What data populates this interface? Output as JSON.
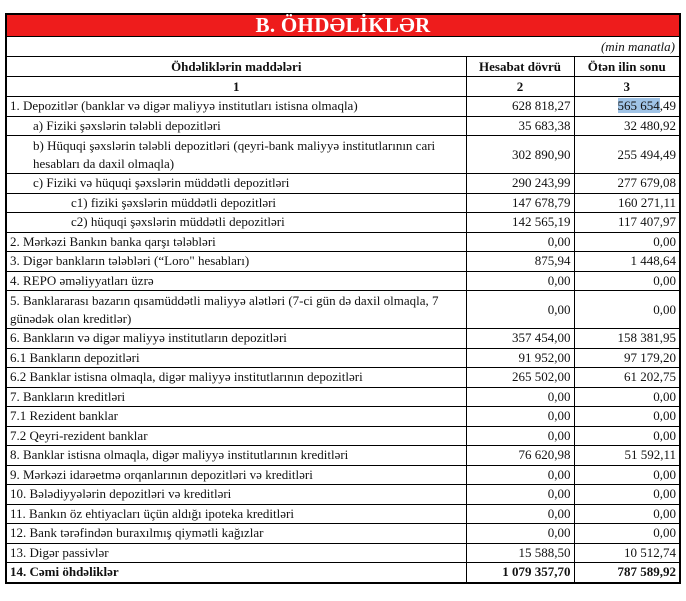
{
  "title": "B. ÖHDƏLİKLƏR",
  "unit": "(min manatla)",
  "columns": [
    "Öhdəliklərin maddələri",
    "Hesabat dövrü",
    "Ötən ilin sonu"
  ],
  "column_numbers": [
    "1",
    "2",
    "3"
  ],
  "selection_color": "#9fc3e6",
  "rows": [
    {
      "label": "1. Depozitlər (banklar və digər maliyyə institutları istisna olmaqla)",
      "current": "628 818,27",
      "previous": "565 654,49",
      "previous_selected": "565 654",
      "previous_rest": ",49",
      "style": ""
    },
    {
      "label": "a)  Fiziki şəxslərin tələbli depozitləri",
      "current": "35 683,38",
      "previous": "32 480,92",
      "style": "ind1"
    },
    {
      "label": "b) Hüquqi şəxslərin tələbli depozitləri (qeyri-bank maliyyə institutlarının cari hesabları da daxil olmaqla)",
      "current": "302 890,90",
      "previous": "255 494,49",
      "style": "ind1 double"
    },
    {
      "label": "c) Fiziki və hüquqi şəxslərin müddətli depozitləri",
      "current": "290 243,99",
      "previous": "277 679,08",
      "style": "ind1"
    },
    {
      "label": "c1) fiziki şəxslərin müddətli depozitləri",
      "current": "147 678,79",
      "previous": "160 271,11",
      "style": "ind2"
    },
    {
      "label": "c2) hüquqi şəxslərin müddətli depozitləri",
      "current": "142 565,19",
      "previous": "117 407,97",
      "style": "ind2"
    },
    {
      "label": "2. Mərkəzi Bankın banka qarşı tələbləri",
      "current": "0,00",
      "previous": "0,00",
      "style": ""
    },
    {
      "label": "3. Digər bankların tələbləri (“Loro\" hesabları)",
      "current": "875,94",
      "previous": "1 448,64",
      "style": ""
    },
    {
      "label": "4. REPO əməliyyatları  üzrə",
      "current": "0,00",
      "previous": "0,00",
      "style": ""
    },
    {
      "label": "5. Banklararası bazarın qısamüddətli maliyyə alətləri (7-ci gün də daxil olmaqla, 7 günədək olan kreditlər)",
      "current": "0,00",
      "previous": "0,00",
      "style": "double"
    },
    {
      "label": "6. Bankların və digər maliyyə institutların depozitləri",
      "current": "357 454,00",
      "previous": "158 381,95",
      "style": ""
    },
    {
      "label": "6.1  Bankların depozitləri",
      "current": "91 952,00",
      "previous": "97 179,20",
      "style": ""
    },
    {
      "label": "6.2 Banklar istisna olmaqla, digər maliyyə institutlarının depozitləri",
      "current": "265 502,00",
      "previous": "61 202,75",
      "style": ""
    },
    {
      "label": "7. Bankların kreditləri",
      "current": "0,00",
      "previous": "0,00",
      "style": ""
    },
    {
      "label": "7.1 Rezident banklar",
      "current": "0,00",
      "previous": "0,00",
      "style": ""
    },
    {
      "label": "7.2 Qeyri-rezident banklar",
      "current": "0,00",
      "previous": "0,00",
      "style": ""
    },
    {
      "label": "8. Banklar istisna olmaqla, digər maliyyə institutlarının kreditləri",
      "current": "76 620,98",
      "previous": "51 592,11",
      "style": ""
    },
    {
      "label": "9. Mərkəzi idarəetmə orqanlarının depozitləri və kreditləri",
      "current": "0,00",
      "previous": "0,00",
      "style": ""
    },
    {
      "label": "10. Bələdiyyələrin depozitləri və kreditləri",
      "current": "0,00",
      "previous": "0,00",
      "style": ""
    },
    {
      "label": "11. Bankın öz ehtiyacları üçün aldığı ipoteka kreditləri",
      "current": "0,00",
      "previous": "0,00",
      "style": ""
    },
    {
      "label": "12. Bank tərəfindən buraxılmış qiymətli kağızlar",
      "current": "0,00",
      "previous": "0,00",
      "style": ""
    },
    {
      "label": "13. Digər passivlər",
      "current": "15 588,50",
      "previous": "10 512,74",
      "style": ""
    },
    {
      "label": "14. Cəmi öhdəliklər",
      "current": "1 079 357,70",
      "previous": "787 589,92",
      "style": "bold"
    }
  ]
}
